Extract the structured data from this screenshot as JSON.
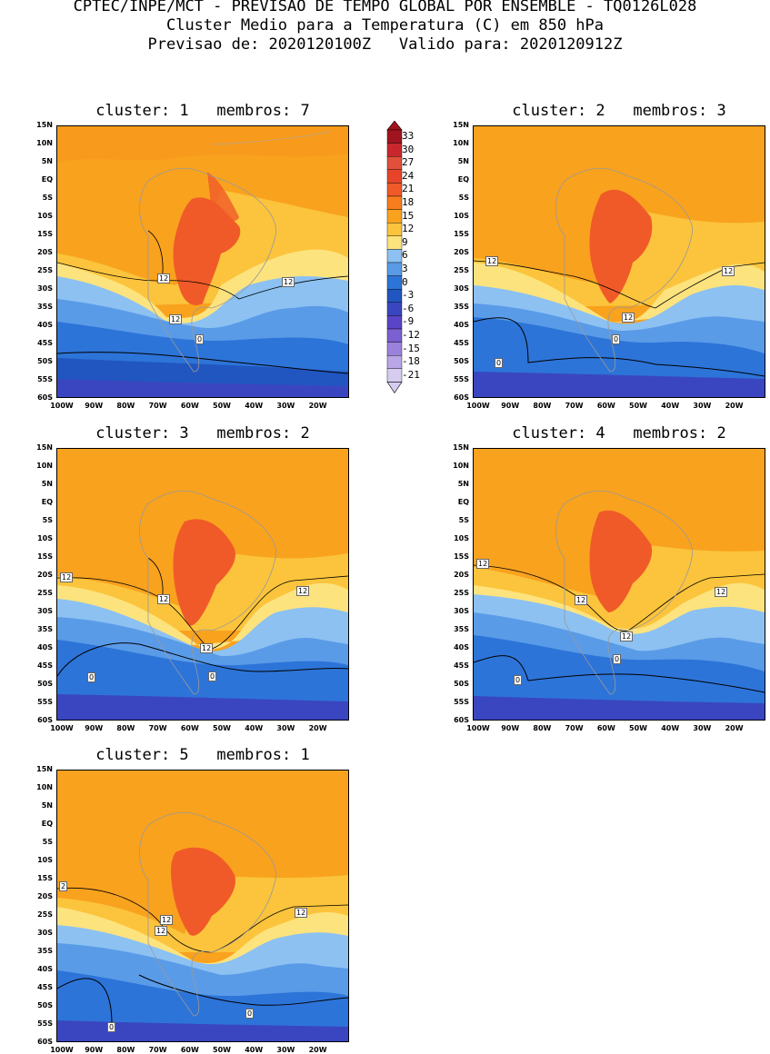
{
  "header": {
    "line1": "CPTEC/INPE/MCT - PREVISAO DE TEMPO GLOBAL POR ENSEMBLE - TQ0126L028",
    "line2": "Cluster Medio para a Temperatura (C) em 850 hPa",
    "line3": "Previsao de: 2020120100Z   Valido para: 2020120912Z"
  },
  "colorbar": {
    "labels": [
      "33",
      "30",
      "27",
      "24",
      "21",
      "18",
      "15",
      "12",
      "9",
      "6",
      "3",
      "0",
      "-3",
      "-6",
      "-9",
      "-12",
      "-15",
      "-18",
      "-21"
    ],
    "colors": [
      "#a0141e",
      "#c8282d",
      "#e0503a",
      "#e8442a",
      "#f05a28",
      "#f87d1c",
      "#f9a21e",
      "#fbc43c",
      "#fde37e",
      "#8cc1f2",
      "#5a9be8",
      "#2d74d8",
      "#2156c0",
      "#3a46c0",
      "#5a44c8",
      "#7a60d0",
      "#9a82dc",
      "#b8a6e6",
      "#d6ccf0"
    ]
  },
  "lat_labels": [
    "15N",
    "10N",
    "5N",
    "EQ",
    "5S",
    "10S",
    "15S",
    "20S",
    "25S",
    "30S",
    "35S",
    "40S",
    "45S",
    "50S",
    "55S",
    "60S"
  ],
  "lon_labels": [
    "100W",
    "90W",
    "80W",
    "70W",
    "60W",
    "50W",
    "40W",
    "30W",
    "20W"
  ],
  "panels": [
    {
      "title": "cluster: 1   membros: 7",
      "labels": [
        {
          "t": "12"
        },
        {
          "t": "12"
        },
        {
          "t": "12"
        },
        {
          "t": "0"
        }
      ]
    },
    {
      "title": "cluster: 2   membros: 3",
      "labels": [
        {
          "t": "12"
        },
        {
          "t": "12"
        },
        {
          "t": "12"
        },
        {
          "t": "0"
        },
        {
          "t": "0"
        }
      ]
    },
    {
      "title": "cluster: 3   membros: 2",
      "labels": [
        {
          "t": "12"
        },
        {
          "t": "12"
        },
        {
          "t": "12"
        },
        {
          "t": "12"
        },
        {
          "t": "0"
        },
        {
          "t": "0"
        }
      ]
    },
    {
      "title": "cluster: 4   membros: 2",
      "labels": [
        {
          "t": "12"
        },
        {
          "t": "12"
        },
        {
          "t": "12"
        },
        {
          "t": "12"
        },
        {
          "t": "0"
        },
        {
          "t": "0"
        }
      ]
    },
    {
      "title": "cluster: 5   membros: 1",
      "labels": [
        {
          "t": "2"
        },
        {
          "t": "12"
        },
        {
          "t": "12"
        },
        {
          "t": "12"
        },
        {
          "t": "0"
        },
        {
          "t": "0"
        }
      ]
    }
  ]
}
